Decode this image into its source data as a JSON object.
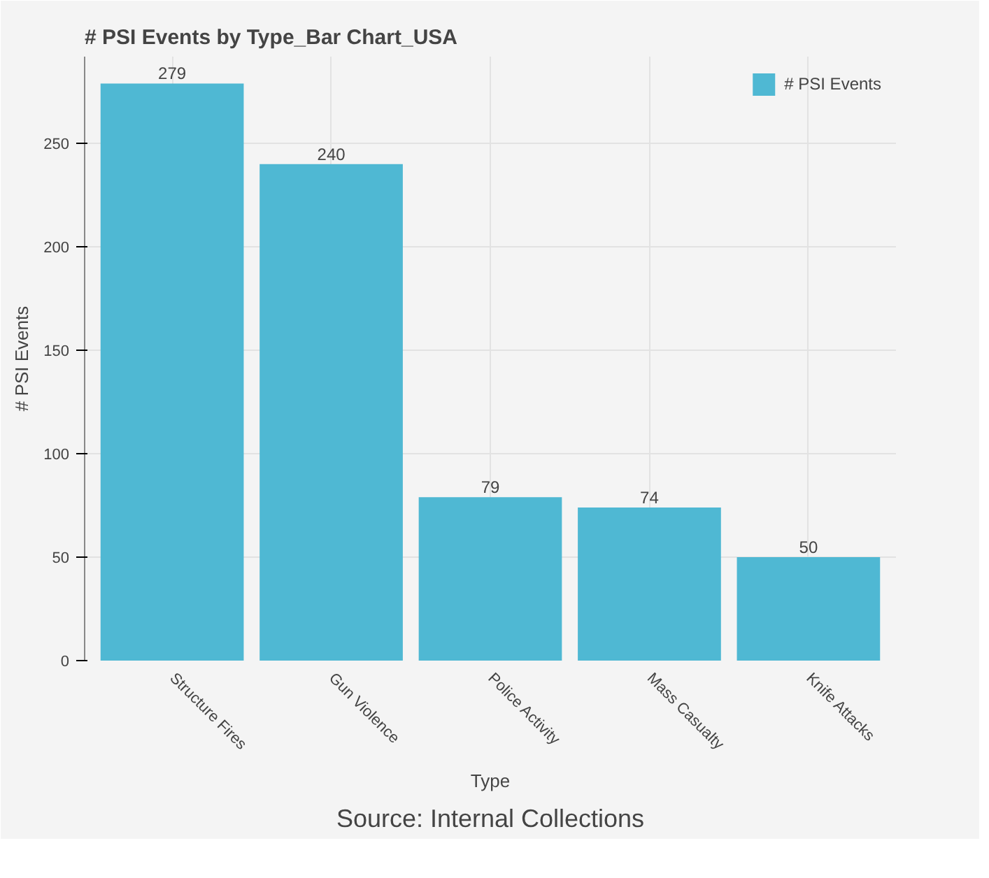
{
  "chart_data": {
    "type": "bar",
    "title": "# PSI Events by Type_Bar Chart_USA",
    "xlabel": "Type",
    "ylabel": "# PSI Events",
    "categories": [
      "Structure Fires",
      "Gun Violence",
      "Police Activity",
      "Mass Casualty",
      "Knife Attacks"
    ],
    "series": [
      {
        "name": "# PSI Events",
        "color": "#4fb8d3",
        "values": [
          279,
          240,
          79,
          74,
          50
        ]
      }
    ],
    "ylim": [
      0,
      292
    ],
    "yticks": [
      0,
      50,
      100,
      150,
      200,
      250
    ],
    "grid": true,
    "legend": "top right",
    "data_labels": true,
    "annotations": [
      "Source: Internal Collections"
    ]
  }
}
